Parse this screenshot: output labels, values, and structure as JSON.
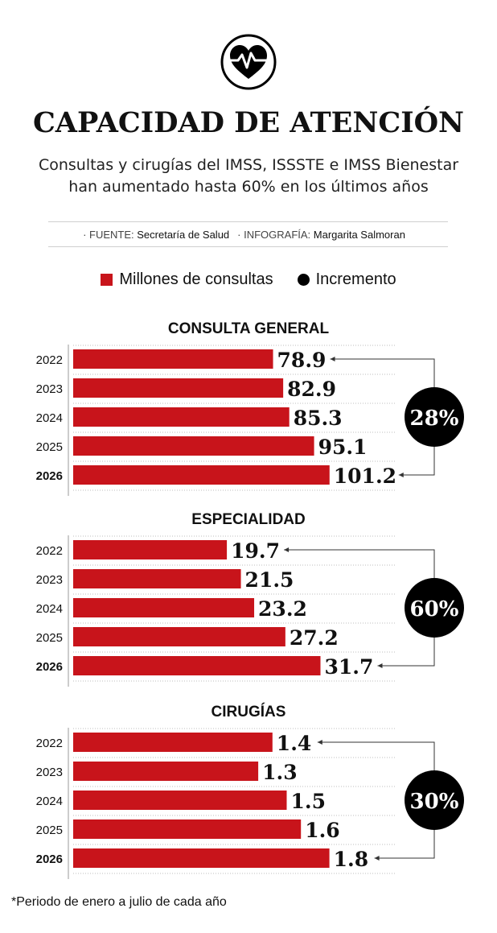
{
  "header": {
    "title": "CAPACIDAD DE ATENCIÓN",
    "subtitle_line1": "Consultas y cirugías del IMSS, ISSSTE e IMSS Bienestar",
    "subtitle_line2": "han aumentado hasta 60% en los últimos años",
    "logo_icon": "heart-pulse-icon"
  },
  "credits": {
    "source_label": "· FUENTE:",
    "source_value": "Secretaría de Salud",
    "graphics_label": "· INFOGRAFÍA:",
    "graphics_value": "Margarita Salmoran"
  },
  "legend": {
    "bars_label": "Millones de consultas",
    "increase_label": "Incremento"
  },
  "colors": {
    "bar": "#c8141b",
    "badge": "#000000",
    "grid": "#bdbdbd"
  },
  "chart_data": [
    {
      "type": "bar",
      "orientation": "horizontal",
      "title": "CONSULTA GENERAL",
      "categories": [
        "2022",
        "2023",
        "2024",
        "2025",
        "2026"
      ],
      "values": [
        78.9,
        82.9,
        85.3,
        95.1,
        101.2
      ],
      "value_labels": [
        "78.9",
        "82.9",
        "85.3",
        "95.1",
        "101.2"
      ],
      "increase": "28%"
    },
    {
      "type": "bar",
      "orientation": "horizontal",
      "title": "ESPECIALIDAD",
      "categories": [
        "2022",
        "2023",
        "2024",
        "2025",
        "2026"
      ],
      "values": [
        19.7,
        21.5,
        23.2,
        27.2,
        31.7
      ],
      "value_labels": [
        "19.7",
        "21.5",
        "23.2",
        "27.2",
        "31.7"
      ],
      "increase": "60%"
    },
    {
      "type": "bar",
      "orientation": "horizontal",
      "title": "CIRUGÍAS",
      "categories": [
        "2022",
        "2023",
        "2024",
        "2025",
        "2026"
      ],
      "values": [
        1.4,
        1.3,
        1.5,
        1.6,
        1.8
      ],
      "value_labels": [
        "1.4",
        "1.3",
        "1.5",
        "1.6",
        "1.8"
      ],
      "increase": "30%"
    }
  ],
  "footnote": "*Periodo de enero a julio de cada año"
}
